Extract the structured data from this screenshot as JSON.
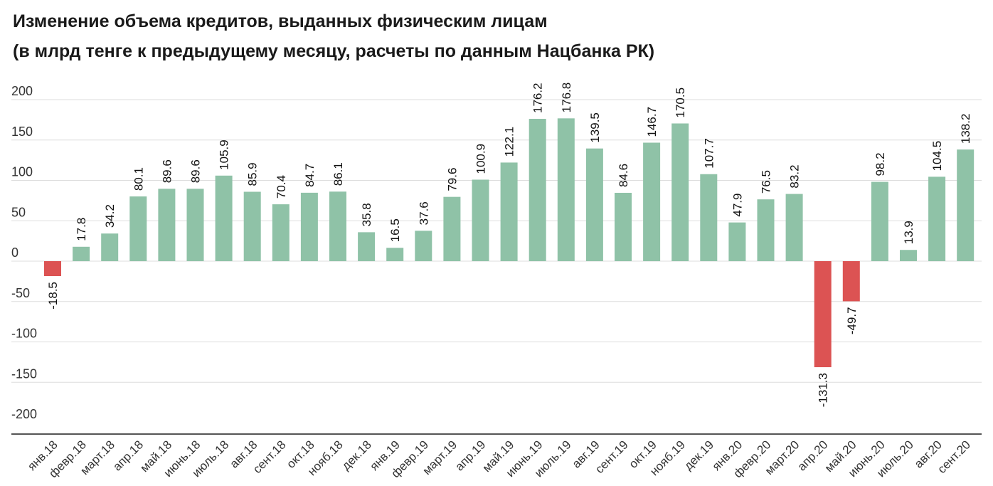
{
  "title_line1": "Изменение объема кредитов, выданных физическим лицам",
  "title_line2": "(в млрд тенге к предыдущему месяцу, расчеты по данным Нацбанка РК)",
  "chart_data": {
    "type": "bar",
    "title": "Изменение объема кредитов, выданных физическим лицам (в млрд тенге к предыдущему месяцу, расчеты по данным Нацбанка РК)",
    "xlabel": "",
    "ylabel": "",
    "ylim": [
      -200,
      200
    ],
    "yticks": [
      200,
      150,
      100,
      50,
      0,
      -50,
      -100,
      -150,
      -200
    ],
    "grid": true,
    "positive_color": "#8fc2a7",
    "negative_color": "#dc5353",
    "categories": [
      "янв.18",
      "февр.18",
      "март.18",
      "апр.18",
      "май.18",
      "июнь.18",
      "июль.18",
      "авг.18",
      "сент.18",
      "окт.18",
      "нояб.18",
      "дек.18",
      "янв.19",
      "февр.19",
      "март.19",
      "апр.19",
      "май.19",
      "июнь.19",
      "июль.19",
      "авг.19",
      "сент.19",
      "окт.19",
      "нояб.19",
      "дек.19",
      "янв.20",
      "февр.20",
      "март.20",
      "апр.20",
      "май.20",
      "июнь.20",
      "июль.20",
      "авг.20",
      "сент.20"
    ],
    "values": [
      -18.5,
      17.8,
      34.2,
      80.1,
      89.6,
      89.6,
      105.9,
      85.9,
      70.4,
      84.7,
      86.1,
      35.8,
      16.5,
      37.6,
      79.6,
      100.9,
      122.1,
      176.2,
      176.8,
      139.5,
      84.6,
      146.7,
      170.5,
      107.7,
      47.9,
      76.5,
      83.2,
      -131.3,
      -49.7,
      98.2,
      13.9,
      104.5,
      138.2
    ]
  }
}
